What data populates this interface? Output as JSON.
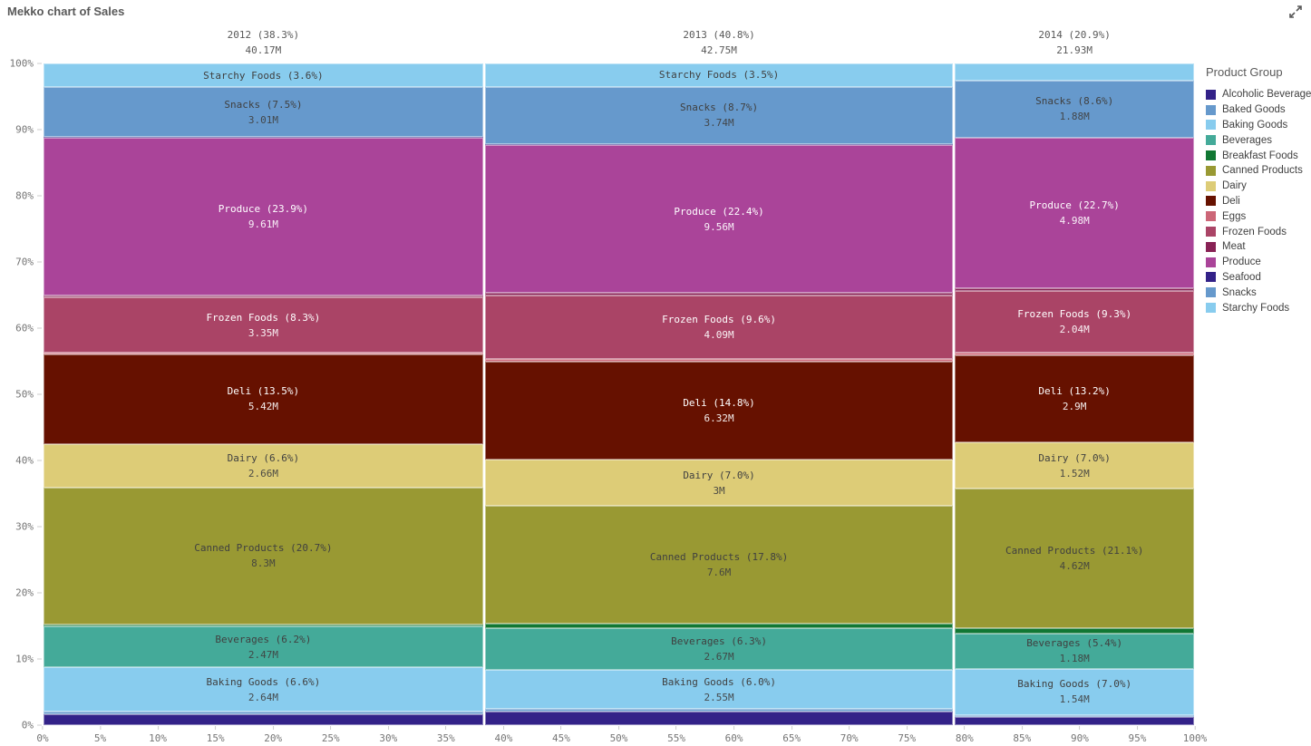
{
  "title": "Mekko chart of Sales",
  "legend": {
    "title": "Product Group"
  },
  "chart_data": {
    "type": "mekko",
    "title": "Mekko chart of Sales",
    "x_axis": {
      "ticks": [
        "0%",
        "5%",
        "10%",
        "15%",
        "20%",
        "25%",
        "30%",
        "35%",
        "40%",
        "45%",
        "50%",
        "55%",
        "60%",
        "65%",
        "70%",
        "75%",
        "80%",
        "85%",
        "90%",
        "95%",
        "100%"
      ]
    },
    "y_axis": {
      "ticks": [
        "100%",
        "90%",
        "80%",
        "70%",
        "60%",
        "50%",
        "40%",
        "30%",
        "20%",
        "10%",
        "0%"
      ]
    },
    "palette": [
      {
        "group": "Alcoholic Beverages",
        "color": "#332288",
        "text": "light"
      },
      {
        "group": "Baked Goods",
        "color": "#6699CC",
        "text": "dark"
      },
      {
        "group": "Baking Goods",
        "color": "#88CCEE",
        "text": "dark"
      },
      {
        "group": "Beverages",
        "color": "#44AA99",
        "text": "dark"
      },
      {
        "group": "Breakfast Foods",
        "color": "#117733",
        "text": "light"
      },
      {
        "group": "Canned Products",
        "color": "#999933",
        "text": "dark"
      },
      {
        "group": "Dairy",
        "color": "#DDCC77",
        "text": "dark"
      },
      {
        "group": "Deli",
        "color": "#661100",
        "text": "light"
      },
      {
        "group": "Eggs",
        "color": "#CC6677",
        "text": "dark"
      },
      {
        "group": "Frozen Foods",
        "color": "#AA4466",
        "text": "light"
      },
      {
        "group": "Meat",
        "color": "#882255",
        "text": "light"
      },
      {
        "group": "Produce",
        "color": "#AA4499",
        "text": "light"
      },
      {
        "group": "Seafood",
        "color": "#332288",
        "text": "light"
      },
      {
        "group": "Snacks",
        "color": "#6699CC",
        "text": "dark"
      },
      {
        "group": "Starchy Foods",
        "color": "#88CCEE",
        "text": "dark"
      }
    ],
    "columns": [
      {
        "name": "2012",
        "header": "2012 (38.3%)",
        "total": "40.17M",
        "width_pct": 38.3,
        "segments": [
          {
            "group": "Starchy Foods",
            "pct": 3.6,
            "label": "Starchy Foods (3.6%)",
            "value": null
          },
          {
            "group": "Snacks",
            "pct": 7.5,
            "label": "Snacks (7.5%)",
            "value": "3.01M"
          },
          {
            "group": "Seafood",
            "pct": 0.1,
            "label": null,
            "value": null
          },
          {
            "group": "Produce",
            "pct": 23.9,
            "label": "Produce (23.9%)",
            "value": "9.61M"
          },
          {
            "group": "Meat",
            "pct": 0.3,
            "label": null,
            "value": null
          },
          {
            "group": "Frozen Foods",
            "pct": 8.3,
            "label": "Frozen Foods (8.3%)",
            "value": "3.35M"
          },
          {
            "group": "Eggs",
            "pct": 0.3,
            "label": null,
            "value": null
          },
          {
            "group": "Deli",
            "pct": 13.5,
            "label": "Deli (13.5%)",
            "value": "5.42M"
          },
          {
            "group": "Dairy",
            "pct": 6.6,
            "label": "Dairy (6.6%)",
            "value": "2.66M"
          },
          {
            "group": "Canned Products",
            "pct": 20.7,
            "label": "Canned Products (20.7%)",
            "value": "8.3M"
          },
          {
            "group": "Breakfast Foods",
            "pct": 0.3,
            "label": null,
            "value": null
          },
          {
            "group": "Beverages",
            "pct": 6.2,
            "label": "Beverages (6.2%)",
            "value": "2.47M"
          },
          {
            "group": "Baking Goods",
            "pct": 6.6,
            "label": "Baking Goods (6.6%)",
            "value": "2.64M"
          },
          {
            "group": "Baked Goods",
            "pct": 0.4,
            "label": null,
            "value": null
          },
          {
            "group": "Alcoholic Beverages",
            "pct": 1.7,
            "label": null,
            "value": null
          }
        ]
      },
      {
        "name": "2013",
        "header": "2013 (40.8%)",
        "total": "42.75M",
        "width_pct": 40.8,
        "segments": [
          {
            "group": "Starchy Foods",
            "pct": 3.5,
            "label": "Starchy Foods (3.5%)",
            "value": null
          },
          {
            "group": "Snacks",
            "pct": 8.7,
            "label": "Snacks (8.7%)",
            "value": "3.74M"
          },
          {
            "group": "Seafood",
            "pct": 0.1,
            "label": null,
            "value": null
          },
          {
            "group": "Produce",
            "pct": 22.4,
            "label": "Produce (22.4%)",
            "value": "9.56M"
          },
          {
            "group": "Meat",
            "pct": 0.4,
            "label": null,
            "value": null
          },
          {
            "group": "Frozen Foods",
            "pct": 9.6,
            "label": "Frozen Foods (9.6%)",
            "value": "4.09M"
          },
          {
            "group": "Eggs",
            "pct": 0.4,
            "label": null,
            "value": null
          },
          {
            "group": "Deli",
            "pct": 14.8,
            "label": "Deli (14.8%)",
            "value": "6.32M"
          },
          {
            "group": "Dairy",
            "pct": 7.0,
            "label": "Dairy (7.0%)",
            "value": "3M"
          },
          {
            "group": "Canned Products",
            "pct": 17.8,
            "label": "Canned Products (17.8%)",
            "value": "7.6M"
          },
          {
            "group": "Breakfast Foods",
            "pct": 0.6,
            "label": null,
            "value": null
          },
          {
            "group": "Beverages",
            "pct": 6.3,
            "label": "Beverages (6.3%)",
            "value": "2.67M"
          },
          {
            "group": "Baking Goods",
            "pct": 6.0,
            "label": "Baking Goods (6.0%)",
            "value": "2.55M"
          },
          {
            "group": "Baked Goods",
            "pct": 0.4,
            "label": null,
            "value": null
          },
          {
            "group": "Alcoholic Beverages",
            "pct": 2.0,
            "label": null,
            "value": null
          }
        ]
      },
      {
        "name": "2014",
        "header": "2014 (20.9%)",
        "total": "21.93M",
        "width_pct": 20.9,
        "segments": [
          {
            "group": "Starchy Foods",
            "pct": 2.6,
            "label": null,
            "value": null
          },
          {
            "group": "Snacks",
            "pct": 8.6,
            "label": "Snacks (8.6%)",
            "value": "1.88M"
          },
          {
            "group": "Seafood",
            "pct": 0.1,
            "label": null,
            "value": null
          },
          {
            "group": "Produce",
            "pct": 22.7,
            "label": "Produce (22.7%)",
            "value": "4.98M"
          },
          {
            "group": "Meat",
            "pct": 0.4,
            "label": null,
            "value": null
          },
          {
            "group": "Frozen Foods",
            "pct": 9.3,
            "label": "Frozen Foods (9.3%)",
            "value": "2.04M"
          },
          {
            "group": "Eggs",
            "pct": 0.4,
            "label": null,
            "value": null
          },
          {
            "group": "Deli",
            "pct": 13.2,
            "label": "Deli (13.2%)",
            "value": "2.9M"
          },
          {
            "group": "Dairy",
            "pct": 7.0,
            "label": "Dairy (7.0%)",
            "value": "1.52M"
          },
          {
            "group": "Canned Products",
            "pct": 21.1,
            "label": "Canned Products (21.1%)",
            "value": "4.62M"
          },
          {
            "group": "Breakfast Foods",
            "pct": 0.7,
            "label": null,
            "value": null
          },
          {
            "group": "Beverages",
            "pct": 5.4,
            "label": "Beverages (5.4%)",
            "value": "1.18M"
          },
          {
            "group": "Baking Goods",
            "pct": 7.0,
            "label": "Baking Goods (7.0%)",
            "value": "1.54M"
          },
          {
            "group": "Baked Goods",
            "pct": 0.3,
            "label": null,
            "value": null
          },
          {
            "group": "Alcoholic Beverages",
            "pct": 1.2,
            "label": null,
            "value": null
          }
        ]
      }
    ]
  }
}
